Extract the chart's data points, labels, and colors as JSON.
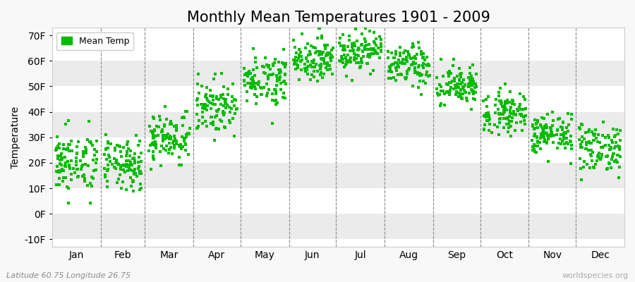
{
  "title": "Monthly Mean Temperatures 1901 - 2009",
  "ylabel": "Temperature",
  "subtitle": "Latitude 60.75 Longitude 26.75",
  "watermark": "worldspecies.org",
  "yticks": [
    -10,
    0,
    10,
    20,
    30,
    40,
    50,
    60,
    70
  ],
  "ytick_labels": [
    "-10F",
    "0F",
    "10F",
    "20F",
    "30F",
    "40F",
    "50F",
    "60F",
    "70F"
  ],
  "ylim": [
    -13,
    73
  ],
  "months": [
    "Jan",
    "Feb",
    "Mar",
    "Apr",
    "May",
    "Jun",
    "Jul",
    "Aug",
    "Sep",
    "Oct",
    "Nov",
    "Dec"
  ],
  "dot_color": "#00bb00",
  "background_color": "#f8f8f8",
  "plot_bg_color": "#ffffff",
  "stripe_color_light": "#ffffff",
  "stripe_color_dark": "#ebebeb",
  "title_fontsize": 15,
  "axis_fontsize": 10,
  "legend_fontsize": 9,
  "seed": 42,
  "monthly_means_F": [
    20,
    19,
    30,
    42,
    53,
    61,
    64,
    58,
    50,
    40,
    31,
    26
  ],
  "monthly_stds_F": [
    6,
    5,
    5,
    5,
    5,
    4,
    4,
    4,
    4,
    4,
    4,
    5
  ],
  "n_years": 109,
  "days_in_month": [
    31,
    28,
    31,
    30,
    31,
    30,
    31,
    31,
    30,
    31,
    30,
    31
  ]
}
